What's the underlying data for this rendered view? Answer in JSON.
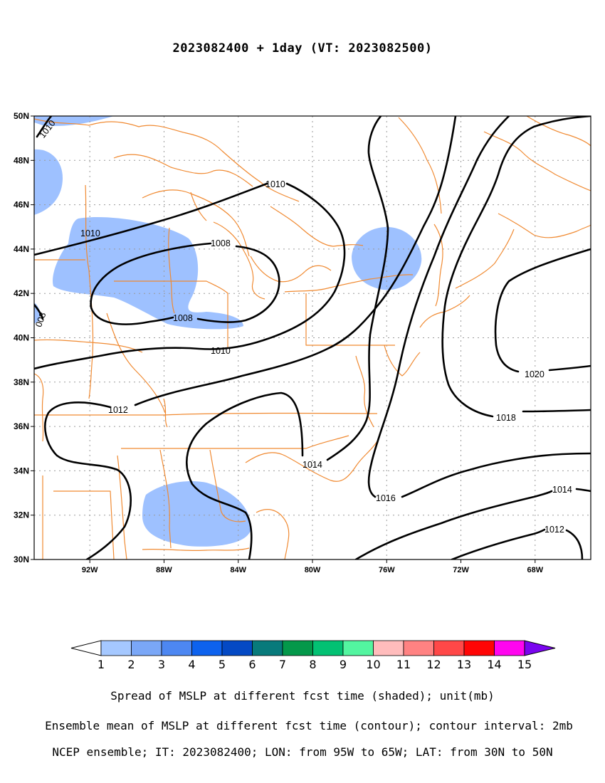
{
  "title": "2023082400 + 1day (VT: 2023082500)",
  "map": {
    "lat_labels": [
      "50N",
      "48N",
      "46N",
      "44N",
      "42N",
      "40N",
      "38N",
      "36N",
      "34N",
      "32N",
      "30N"
    ],
    "lon_labels": [
      "92W",
      "88W",
      "84W",
      "80W",
      "76W",
      "72W",
      "68W"
    ],
    "contour_labels": [
      "1010",
      "1010",
      "1010",
      "1008",
      "1008",
      "1010",
      "1012",
      "1014",
      "1016",
      "1018",
      "1020",
      "1014",
      "1012",
      "008"
    ],
    "colors": {
      "contour": "#000000",
      "border": "#f08a32",
      "spread_1": "#9ec1ff",
      "grid": "#9a9a9a"
    }
  },
  "colorbar": {
    "labels": [
      "1",
      "2",
      "3",
      "4",
      "5",
      "6",
      "7",
      "8",
      "9",
      "10",
      "11",
      "12",
      "13",
      "14",
      "15"
    ],
    "colors": [
      "#ffffff",
      "#a5c8ff",
      "#7aa7f7",
      "#4d87f2",
      "#0d62ee",
      "#0449c4",
      "#087a7b",
      "#04984a",
      "#03c173",
      "#53f5a0",
      "#ffbcbc",
      "#ff8282",
      "#ff4848",
      "#ff0505",
      "#ff05ef",
      "#7a05ef"
    ]
  },
  "captions": [
    "Spread of MSLP at different fcst time (shaded); unit(mb)",
    "Ensemble mean of MSLP at different fcst time (contour); contour interval: 2mb",
    "NCEP ensemble; IT: 2023082400; LON: from 95W to 65W; LAT: from 30N to 50N"
  ]
}
